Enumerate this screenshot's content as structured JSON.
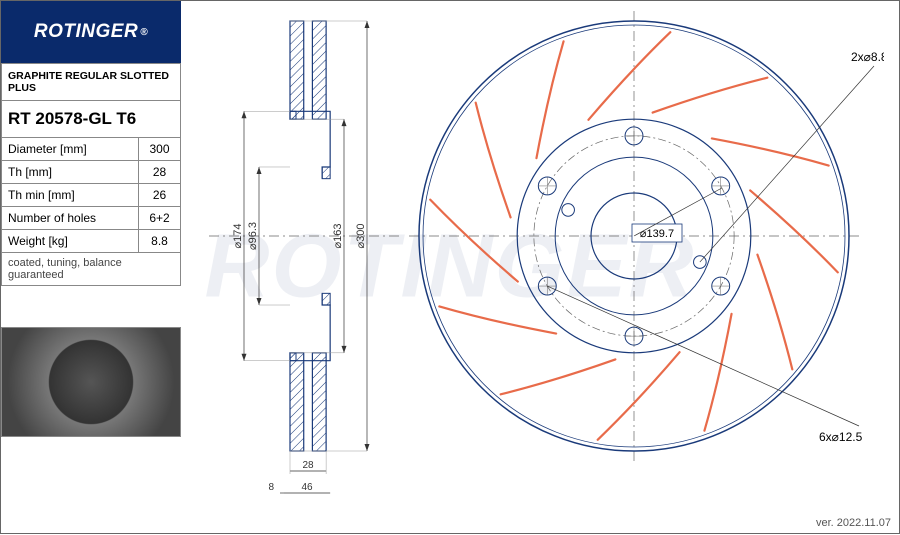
{
  "brand": "ROTINGER",
  "watermark": "ROTINGER",
  "product_line": "GRAPHITE REGULAR SLOTTED PLUS",
  "part_number": "RT 20578-GL T6",
  "specs": [
    {
      "label": "Diameter [mm]",
      "value": "300"
    },
    {
      "label": "Th [mm]",
      "value": "28"
    },
    {
      "label": "Th min [mm]",
      "value": "26"
    },
    {
      "label": "Number of holes",
      "value": "6+2"
    },
    {
      "label": "Weight [kg]",
      "value": "8.8"
    }
  ],
  "notes": "coated, tuning, balance guaranteed",
  "version": "ver. 2022.11.07",
  "side_view": {
    "dims": {
      "d174": "⌀174",
      "d96_3": "⌀96.3",
      "d163": "⌀163",
      "d300": "⌀300",
      "w8": "8",
      "w28": "28",
      "w46": "46"
    },
    "colors": {
      "outline": "#1a3a7a",
      "hatch": "#1a3a7a",
      "dim": "#333333",
      "witness": "#999999"
    }
  },
  "front_view": {
    "outer_d": 300,
    "inner_ring_d": 163,
    "hub_d": 96.3,
    "pcd_label": "⌀139.7",
    "bolt_label": "6x⌀12.5",
    "pin_label": "2x⌀8.8",
    "num_slots": 12,
    "num_bolts": 6,
    "colors": {
      "outline": "#1a3a7a",
      "slot": "#e86b4a",
      "center": "#666666"
    }
  }
}
